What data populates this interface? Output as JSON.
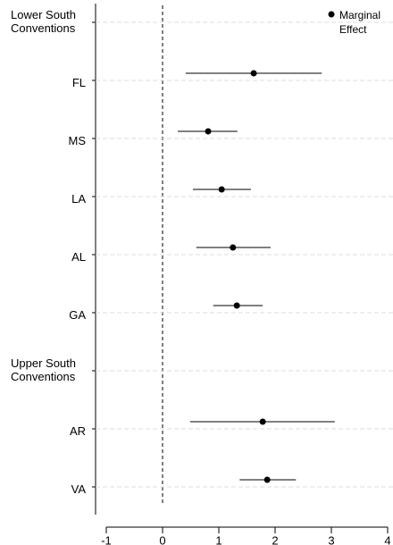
{
  "chart_data": {
    "type": "dot",
    "categories": [
      "Lower South Conventions",
      "FL",
      "MS",
      "LA",
      "AL",
      "GA",
      "Upper South Conventions",
      "AR",
      "VA"
    ],
    "series": [
      {
        "name": "Marginal Effect",
        "color": "#000000",
        "values": [
          null,
          1.62,
          0.81,
          1.05,
          1.25,
          1.32,
          null,
          1.78,
          1.86
        ],
        "lower": [
          null,
          0.41,
          0.27,
          0.54,
          0.6,
          0.9,
          null,
          0.49,
          1.37
        ],
        "upper": [
          null,
          2.83,
          1.33,
          1.57,
          1.92,
          1.78,
          null,
          3.06,
          2.37
        ]
      }
    ],
    "xlim": [
      -1,
      4
    ],
    "xticks": [
      -1,
      0,
      1,
      2,
      3,
      4
    ],
    "grid": true,
    "reference_line": 0,
    "legend": "upper right"
  }
}
